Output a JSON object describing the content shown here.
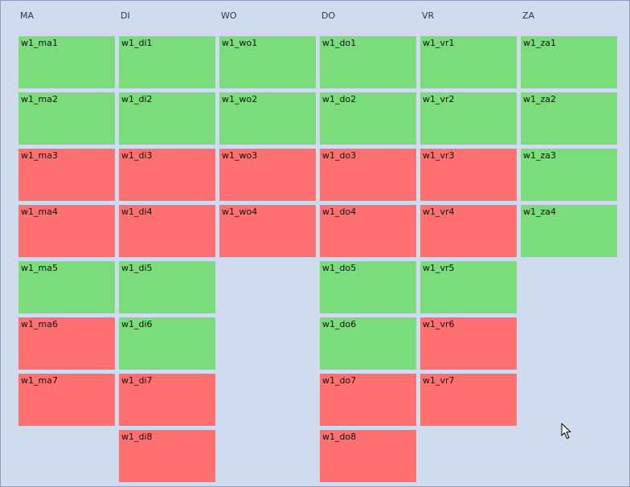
{
  "colors": {
    "background": "#d0dcee",
    "green": "#7adc7a",
    "red": "#ff7070"
  },
  "columns": [
    {
      "label": "MA",
      "slots": [
        {
          "label": "w1_ma1",
          "status": "green"
        },
        {
          "label": "w1_ma2",
          "status": "green"
        },
        {
          "label": "w1_ma3",
          "status": "red"
        },
        {
          "label": "w1_ma4",
          "status": "red"
        },
        {
          "label": "w1_ma5",
          "status": "green"
        },
        {
          "label": "w1_ma6",
          "status": "red"
        },
        {
          "label": "w1_ma7",
          "status": "red"
        }
      ]
    },
    {
      "label": "DI",
      "slots": [
        {
          "label": "w1_di1",
          "status": "green"
        },
        {
          "label": "w1_di2",
          "status": "green"
        },
        {
          "label": "w1_di3",
          "status": "red"
        },
        {
          "label": "w1_di4",
          "status": "red"
        },
        {
          "label": "w1_di5",
          "status": "green"
        },
        {
          "label": "w1_di6",
          "status": "green"
        },
        {
          "label": "w1_di7",
          "status": "red"
        },
        {
          "label": "w1_di8",
          "status": "red"
        }
      ]
    },
    {
      "label": "WO",
      "slots": [
        {
          "label": "w1_wo1",
          "status": "green"
        },
        {
          "label": "w1_wo2",
          "status": "green"
        },
        {
          "label": "w1_wo3",
          "status": "red"
        },
        {
          "label": "w1_wo4",
          "status": "red"
        }
      ]
    },
    {
      "label": "DO",
      "slots": [
        {
          "label": "w1_do1",
          "status": "green"
        },
        {
          "label": "w1_do2",
          "status": "green"
        },
        {
          "label": "w1_do3",
          "status": "red"
        },
        {
          "label": "w1_do4",
          "status": "red"
        },
        {
          "label": "w1_do5",
          "status": "green"
        },
        {
          "label": "w1_do6",
          "status": "green"
        },
        {
          "label": "w1_do7",
          "status": "red"
        },
        {
          "label": "w1_do8",
          "status": "red"
        }
      ]
    },
    {
      "label": "VR",
      "slots": [
        {
          "label": "w1_vr1",
          "status": "green"
        },
        {
          "label": "w1_vr2",
          "status": "green"
        },
        {
          "label": "w1_vr3",
          "status": "red"
        },
        {
          "label": "w1_vr4",
          "status": "red"
        },
        {
          "label": "w1_vr5",
          "status": "green"
        },
        {
          "label": "w1_vr6",
          "status": "red"
        },
        {
          "label": "w1_vr7",
          "status": "red"
        }
      ]
    },
    {
      "label": "ZA",
      "slots": [
        {
          "label": "w1_za1",
          "status": "green"
        },
        {
          "label": "w1_za2",
          "status": "green"
        },
        {
          "label": "w1_za3",
          "status": "green"
        },
        {
          "label": "w1_za4",
          "status": "green"
        }
      ]
    }
  ],
  "cursor_icon": "mouse-pointer-icon"
}
